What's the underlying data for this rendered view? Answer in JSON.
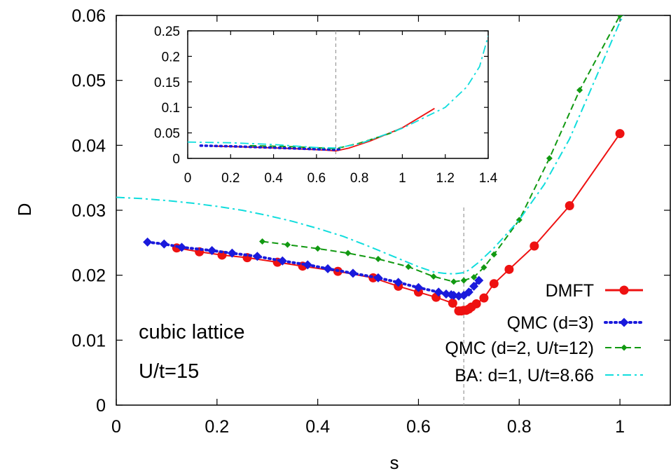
{
  "chart_data": [
    {
      "type": "line",
      "xlabel": "s",
      "ylabel": "D",
      "xlim": [
        0,
        1.1
      ],
      "ylim": [
        0,
        0.06
      ],
      "xticks": [
        "0",
        "0.2",
        "0.4",
        "0.6",
        "0.8",
        "1"
      ],
      "yticks": [
        "0",
        "0.01",
        "0.02",
        "0.03",
        "0.04",
        "0.05",
        "0.06"
      ],
      "grid": false,
      "legend_position": "bottom-right",
      "annotations": [
        "cubic lattice",
        "U/t=15"
      ],
      "reference_line": {
        "x": 0.69,
        "style": "dashed",
        "color": "#999999"
      },
      "series": [
        {
          "name": "DMFT",
          "color": "#ee1111",
          "marker": "circle",
          "line": "solid",
          "x": [
            0.12,
            0.165,
            0.21,
            0.26,
            0.32,
            0.37,
            0.44,
            0.51,
            0.56,
            0.6,
            0.635,
            0.668,
            0.68,
            0.685,
            0.69,
            0.695,
            0.7,
            0.705,
            0.715,
            0.73,
            0.75,
            0.78,
            0.83,
            0.9,
            1.0
          ],
          "y": [
            0.0242,
            0.0236,
            0.0231,
            0.0227,
            0.022,
            0.0214,
            0.0206,
            0.0196,
            0.0183,
            0.0174,
            0.0166,
            0.0157,
            0.0145,
            0.0145,
            0.0146,
            0.0146,
            0.0148,
            0.0151,
            0.0156,
            0.0165,
            0.0187,
            0.0209,
            0.0245,
            0.0307,
            0.0418
          ]
        },
        {
          "name": "QMC (d=3)",
          "color": "#1a1adc",
          "marker": "diamond",
          "line": "dotted",
          "x": [
            0.062,
            0.095,
            0.13,
            0.19,
            0.23,
            0.28,
            0.33,
            0.38,
            0.42,
            0.47,
            0.52,
            0.56,
            0.6,
            0.64,
            0.655,
            0.665,
            0.67,
            0.68,
            0.69,
            0.7,
            0.71,
            0.72
          ],
          "y": [
            0.0251,
            0.0248,
            0.0243,
            0.0238,
            0.0234,
            0.0229,
            0.0222,
            0.0216,
            0.021,
            0.0203,
            0.0196,
            0.0189,
            0.0181,
            0.0174,
            0.0171,
            0.017,
            0.0169,
            0.0168,
            0.0169,
            0.0174,
            0.0183,
            0.0192
          ]
        },
        {
          "name": "QMC (d=2, U/t=12)",
          "color": "#119911",
          "marker": "diamond-small",
          "line": "dashed",
          "x": [
            0.29,
            0.34,
            0.4,
            0.46,
            0.52,
            0.58,
            0.63,
            0.67,
            0.69,
            0.71,
            0.73,
            0.75,
            0.8,
            0.86,
            0.92,
            1.0
          ],
          "y": [
            0.0252,
            0.0247,
            0.0241,
            0.0234,
            0.0225,
            0.0213,
            0.0198,
            0.019,
            0.0192,
            0.0197,
            0.0212,
            0.0232,
            0.0285,
            0.038,
            0.0485,
            0.06
          ]
        },
        {
          "name": "BA: d=1, U/t=8.66",
          "color": "#11dddd",
          "marker": "none",
          "line": "dash-dot",
          "x": [
            0.0,
            0.05,
            0.1,
            0.15,
            0.2,
            0.25,
            0.3,
            0.35,
            0.4,
            0.45,
            0.5,
            0.55,
            0.6,
            0.63,
            0.65,
            0.67,
            0.69,
            0.7,
            0.72,
            0.75,
            0.8,
            0.85,
            0.9,
            0.95,
            1.0,
            1.05
          ],
          "y": [
            0.032,
            0.0318,
            0.0315,
            0.0311,
            0.0306,
            0.03,
            0.0292,
            0.0283,
            0.0272,
            0.026,
            0.0245,
            0.0229,
            0.0213,
            0.0205,
            0.0203,
            0.0202,
            0.0204,
            0.0208,
            0.022,
            0.0242,
            0.0285,
            0.034,
            0.041,
            0.05,
            0.059,
            0.066
          ]
        }
      ]
    },
    {
      "type": "line",
      "xlim": [
        0,
        1.4
      ],
      "ylim": [
        0,
        0.25
      ],
      "xticks": [
        "0",
        "0.2",
        "0.4",
        "0.6",
        "0.8",
        "1",
        "1.2",
        "1.4"
      ],
      "yticks": [
        "0",
        "0.05",
        "0.1",
        "0.15",
        "0.2",
        "0.25"
      ],
      "reference_line": {
        "x": 0.69,
        "style": "dashed",
        "color": "#999999"
      },
      "series": [
        {
          "color": "#ee1111",
          "line": "solid",
          "x": [
            0.12,
            0.3,
            0.5,
            0.65,
            0.69,
            0.75,
            0.85,
            1.0,
            1.15
          ],
          "y": [
            0.024,
            0.022,
            0.019,
            0.016,
            0.0145,
            0.02,
            0.034,
            0.06,
            0.098
          ]
        },
        {
          "color": "#1a1adc",
          "line": "dotted",
          "x": [
            0.06,
            0.2,
            0.4,
            0.6,
            0.69,
            0.72
          ],
          "y": [
            0.025,
            0.0237,
            0.021,
            0.018,
            0.0169,
            0.019
          ]
        },
        {
          "color": "#119911",
          "line": "dashed",
          "x": [
            0.29,
            0.45,
            0.6,
            0.69,
            0.8,
            0.95,
            1.0
          ],
          "y": [
            0.025,
            0.0235,
            0.021,
            0.019,
            0.03,
            0.05,
            0.06
          ]
        },
        {
          "color": "#11dddd",
          "line": "dash-dot",
          "x": [
            0.0,
            0.2,
            0.4,
            0.6,
            0.69,
            0.8,
            1.0,
            1.2,
            1.3,
            1.36,
            1.4
          ],
          "y": [
            0.032,
            0.0306,
            0.0272,
            0.0213,
            0.0204,
            0.0285,
            0.059,
            0.1,
            0.14,
            0.18,
            0.24
          ]
        }
      ]
    }
  ]
}
